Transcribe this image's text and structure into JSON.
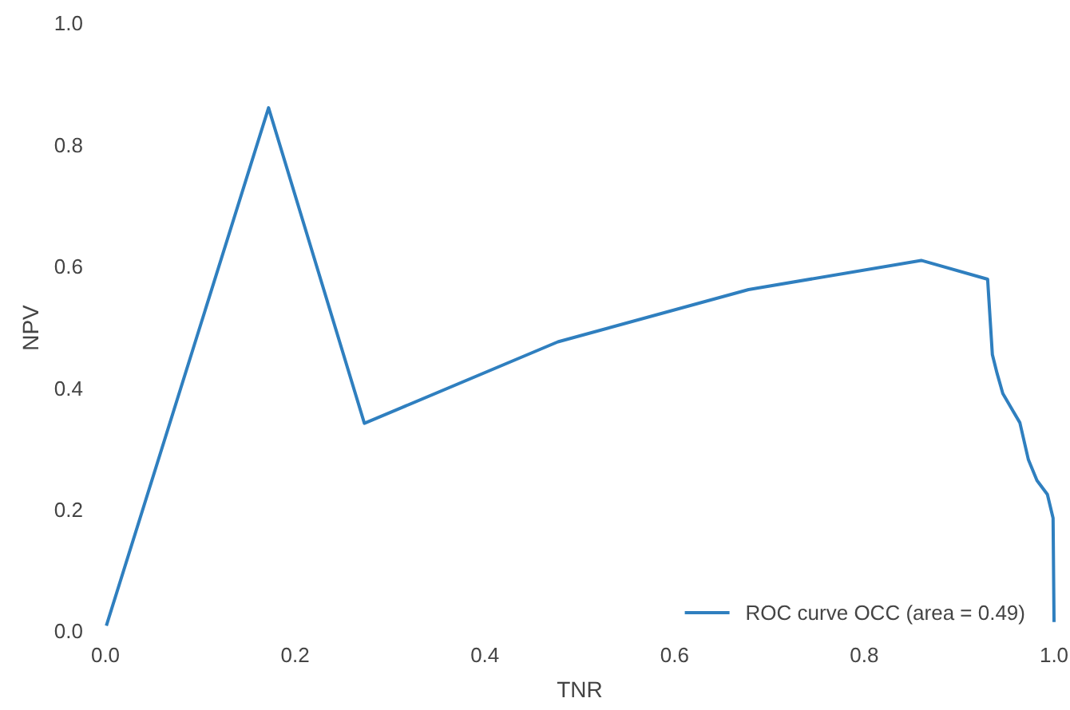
{
  "chart_data": {
    "type": "line",
    "xlabel": "TNR",
    "ylabel": "NPV",
    "xlim": [
      0,
      1
    ],
    "ylim": [
      0,
      1
    ],
    "xticks": [
      {
        "value": 0,
        "label": "0.0"
      },
      0.2,
      0.4,
      0.6,
      0.8,
      {
        "value": 1,
        "label": "1.0"
      }
    ],
    "yticks": [
      {
        "value": 0,
        "label": "0.0"
      },
      0.2,
      0.4,
      0.6,
      0.8,
      {
        "value": 1,
        "label": "1.0"
      }
    ],
    "grid": false,
    "legend": "bottom right",
    "series": [
      {
        "name": "ROC curve OCC (area = 0.49)",
        "color": "#2f7fbf",
        "x": [
          0.001,
          0.172,
          0.273,
          0.477,
          0.678,
          0.86,
          0.93,
          0.935,
          0.94,
          0.946,
          0.964,
          0.973,
          0.982,
          0.993,
          0.999,
          1.0
        ],
        "values": [
          0.01,
          0.862,
          0.343,
          0.477,
          0.563,
          0.611,
          0.58,
          0.456,
          0.425,
          0.392,
          0.344,
          0.283,
          0.249,
          0.226,
          0.187,
          0.016
        ]
      }
    ]
  }
}
